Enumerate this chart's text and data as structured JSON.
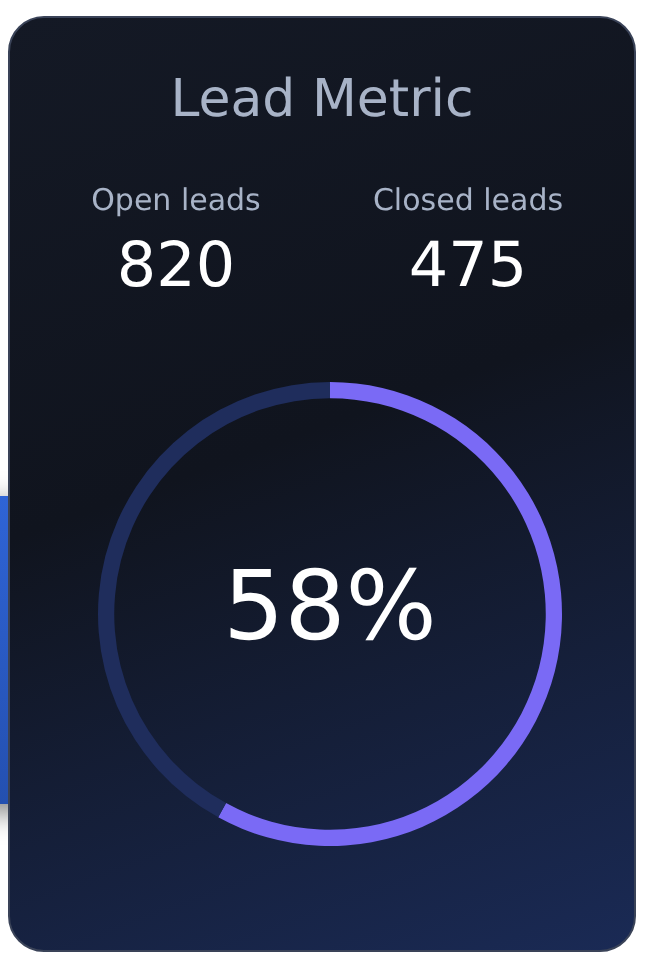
{
  "chart_data": {
    "type": "donut",
    "title": "Lead Metric",
    "annotations": [
      "Open leads",
      "820",
      "Closed leads",
      "475"
    ],
    "categories": [
      null,
      null
    ],
    "values": [
      58,
      42
    ],
    "colors": [
      "#7a6af5",
      "#1f2d5c"
    ],
    "value_labels": [
      "58%",
      null
    ],
    "legend": false
  }
}
